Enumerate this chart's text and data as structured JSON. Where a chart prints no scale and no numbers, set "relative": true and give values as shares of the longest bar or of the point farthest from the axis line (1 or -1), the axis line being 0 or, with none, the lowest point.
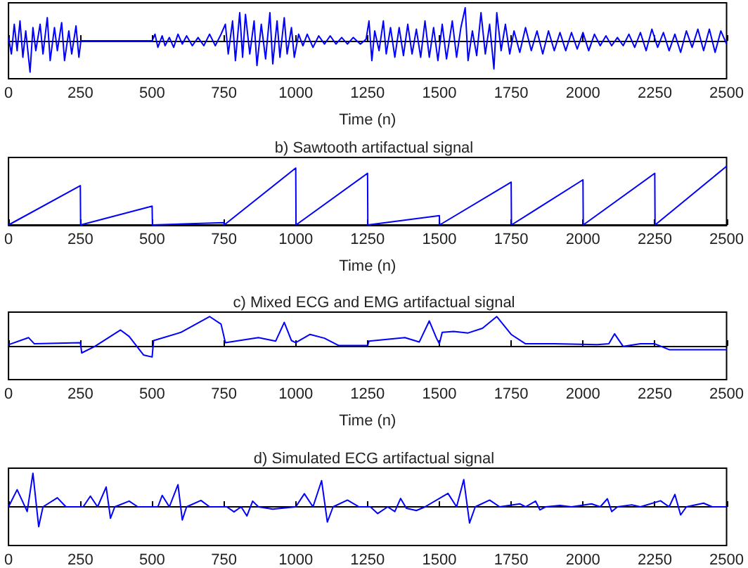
{
  "chart_data": [
    {
      "type": "line",
      "relative": true,
      "xlabel": "Time (n)",
      "color": "#0000ff",
      "xlim": [
        0,
        2500
      ],
      "xticks": [
        0,
        250,
        500,
        750,
        1000,
        1250,
        1500,
        1750,
        2000,
        2250,
        2500
      ],
      "grid": false,
      "x": [
        0,
        10,
        20,
        30,
        40,
        50,
        60,
        75,
        85,
        95,
        110,
        120,
        135,
        145,
        160,
        170,
        185,
        195,
        210,
        220,
        235,
        245,
        252,
        500,
        510,
        520,
        535,
        545,
        560,
        575,
        590,
        605,
        620,
        640,
        660,
        680,
        700,
        720,
        740,
        755,
        765,
        780,
        790,
        805,
        815,
        825,
        840,
        855,
        865,
        880,
        895,
        910,
        920,
        935,
        945,
        960,
        970,
        985,
        995,
        1010,
        1025,
        1040,
        1060,
        1080,
        1100,
        1120,
        1140,
        1160,
        1180,
        1200,
        1225,
        1245,
        1255,
        1265,
        1275,
        1290,
        1305,
        1315,
        1330,
        1345,
        1360,
        1375,
        1390,
        1405,
        1420,
        1435,
        1450,
        1465,
        1480,
        1495,
        1510,
        1525,
        1545,
        1560,
        1575,
        1590,
        1600,
        1615,
        1630,
        1645,
        1660,
        1675,
        1690,
        1700,
        1715,
        1730,
        1745,
        1760,
        1780,
        1800,
        1820,
        1840,
        1860,
        1880,
        1900,
        1920,
        1940,
        1960,
        1980,
        2000,
        2020,
        2040,
        2060,
        2080,
        2100,
        2120,
        2140,
        2160,
        2180,
        2200,
        2220,
        2240,
        2260,
        2280,
        2300,
        2320,
        2340,
        2360,
        2380,
        2400,
        2420,
        2440,
        2460,
        2480,
        2500
      ],
      "values": [
        0.1,
        -0.4,
        0.5,
        -0.3,
        0.6,
        -0.5,
        0.3,
        -0.95,
        0.4,
        -0.3,
        0.5,
        -0.4,
        0.7,
        -0.6,
        0.4,
        -0.3,
        0.55,
        -0.6,
        0.3,
        -0.4,
        0.45,
        -0.5,
        0,
        0,
        0.2,
        -0.2,
        0.15,
        -0.15,
        0.1,
        -0.2,
        0.2,
        -0.1,
        0.15,
        -0.15,
        0.1,
        -0.15,
        0.2,
        -0.15,
        0.2,
        0.5,
        -0.4,
        0.6,
        -0.6,
        0.85,
        -0.5,
        0.8,
        -0.4,
        0.6,
        -0.75,
        0.5,
        -0.55,
        0.85,
        -0.7,
        0.6,
        -0.5,
        0.7,
        -0.4,
        0.4,
        -0.5,
        0.2,
        -0.15,
        0.2,
        -0.2,
        0.15,
        -0.1,
        0.15,
        -0.1,
        0.1,
        -0.1,
        0.1,
        -0.1,
        0.05,
        0.6,
        -0.6,
        0.3,
        -0.3,
        0.6,
        -0.4,
        0.4,
        -0.5,
        0.4,
        -0.45,
        0.5,
        -0.4,
        0.35,
        -0.5,
        0.6,
        -0.5,
        0.4,
        -0.6,
        0.5,
        -0.55,
        0.6,
        -0.5,
        0.4,
        1,
        -0.6,
        0.3,
        -0.45,
        0.85,
        -0.4,
        0.5,
        -0.85,
        0.85,
        -0.3,
        0.5,
        -0.4,
        0.3,
        -0.35,
        0.4,
        -0.3,
        0.3,
        -0.4,
        0.3,
        -0.3,
        0.25,
        -0.3,
        0.25,
        -0.25,
        0.25,
        -0.3,
        0.2,
        -0.15,
        0.15,
        -0.15,
        0.1,
        -0.15,
        0.2,
        -0.2,
        0.25,
        -0.3,
        0.35,
        -0.2,
        0.25,
        -0.3,
        0.2,
        -0.35,
        0.3,
        -0.2,
        0.35,
        -0.3,
        0.35,
        -0.35,
        0.3,
        -0.1
      ]
    },
    {
      "type": "line",
      "relative": true,
      "title": "b) Sawtooth artifactual signal",
      "xlabel": "Time (n)",
      "color": "#0000ff",
      "xlim": [
        0,
        2500
      ],
      "xticks": [
        0,
        250,
        500,
        750,
        1000,
        1250,
        1500,
        1750,
        2000,
        2250,
        2500
      ],
      "grid": false,
      "x": [
        0,
        250,
        251,
        500,
        501,
        750,
        751,
        1000,
        1001,
        1250,
        1251,
        1500,
        1501,
        1750,
        1751,
        2000,
        2001,
        2250,
        2251,
        2500
      ],
      "values": [
        0,
        0.67,
        0,
        0.32,
        0,
        0.04,
        0,
        0.97,
        0,
        0.88,
        0,
        0.16,
        0,
        0.73,
        0,
        0.77,
        0,
        0.88,
        0,
        1
      ]
    },
    {
      "type": "line",
      "relative": true,
      "title": "c) Mixed ECG and EMG artifactual signal",
      "xlabel": "Time (n)",
      "color": "#0000ff",
      "xlim": [
        0,
        2500
      ],
      "xticks": [
        0,
        250,
        500,
        750,
        1000,
        1250,
        1500,
        1750,
        2000,
        2250,
        2500
      ],
      "grid": false,
      "x": [
        0,
        70,
        90,
        250,
        255,
        300,
        390,
        420,
        470,
        500,
        505,
        600,
        700,
        740,
        755,
        870,
        930,
        960,
        985,
        1000,
        1050,
        1100,
        1150,
        1250,
        1255,
        1380,
        1430,
        1465,
        1490,
        1500,
        1510,
        1550,
        1600,
        1650,
        1700,
        1750,
        1800,
        1900,
        2050,
        2090,
        2110,
        2140,
        2200,
        2250,
        2300,
        2500
      ],
      "values": [
        0.04,
        0.28,
        0.07,
        0.11,
        -0.24,
        -0.02,
        0.54,
        0.32,
        -0.31,
        -0.38,
        0.18,
        0.46,
        1,
        0.74,
        0.11,
        0.28,
        0.16,
        0.8,
        0.18,
        0.11,
        0.39,
        0.26,
        0.01,
        0.01,
        0.16,
        0.28,
        0.13,
        0.85,
        0.26,
        0.07,
        0.46,
        0.49,
        0.44,
        0.6,
        1,
        0.39,
        0.07,
        0.07,
        0.04,
        0.07,
        0.41,
        -0.02,
        0.07,
        0.07,
        -0.13,
        -0.13
      ]
    },
    {
      "type": "line",
      "relative": true,
      "title": "d) Simulated ECG artifactual signal",
      "color": "#0000ff",
      "xlim": [
        0,
        2500
      ],
      "xticks": [
        0,
        250,
        500,
        750,
        1000,
        1250,
        1500,
        1750,
        2000,
        2250,
        2500
      ],
      "grid": false,
      "x": [
        0,
        30,
        65,
        85,
        105,
        120,
        170,
        200,
        260,
        285,
        310,
        340,
        355,
        370,
        420,
        450,
        520,
        535,
        560,
        590,
        605,
        620,
        670,
        700,
        760,
        785,
        810,
        830,
        850,
        870,
        920,
        1000,
        1030,
        1060,
        1090,
        1110,
        1130,
        1180,
        1220,
        1260,
        1285,
        1320,
        1345,
        1365,
        1385,
        1420,
        1450,
        1530,
        1560,
        1585,
        1605,
        1625,
        1675,
        1710,
        1780,
        1800,
        1835,
        1850,
        1870,
        1920,
        1960,
        2030,
        2060,
        2085,
        2100,
        2120,
        2170,
        2200,
        2270,
        2300,
        2320,
        2340,
        2360,
        2420,
        2450,
        2500
      ],
      "values": [
        0,
        0.51,
        -0.14,
        1,
        -0.59,
        0,
        0.27,
        0,
        0,
        0.32,
        0,
        0.59,
        -0.34,
        0,
        0.17,
        0,
        0,
        0.34,
        0,
        0.66,
        -0.39,
        0,
        0.19,
        0,
        0,
        -0.15,
        0,
        -0.27,
        0.17,
        0,
        -0.07,
        0,
        0.39,
        0,
        0.78,
        -0.45,
        0,
        0.2,
        0,
        0,
        -0.2,
        0,
        -0.14,
        0.25,
        -0.04,
        -0.11,
        0,
        0.4,
        0,
        0.81,
        -0.48,
        0,
        0.2,
        0,
        0.09,
        0,
        0.17,
        -0.09,
        0,
        0.04,
        0,
        0.09,
        0,
        0.24,
        -0.14,
        0,
        0.06,
        0,
        0.18,
        0,
        0.37,
        -0.24,
        0,
        0.11,
        0,
        0
      ]
    }
  ]
}
